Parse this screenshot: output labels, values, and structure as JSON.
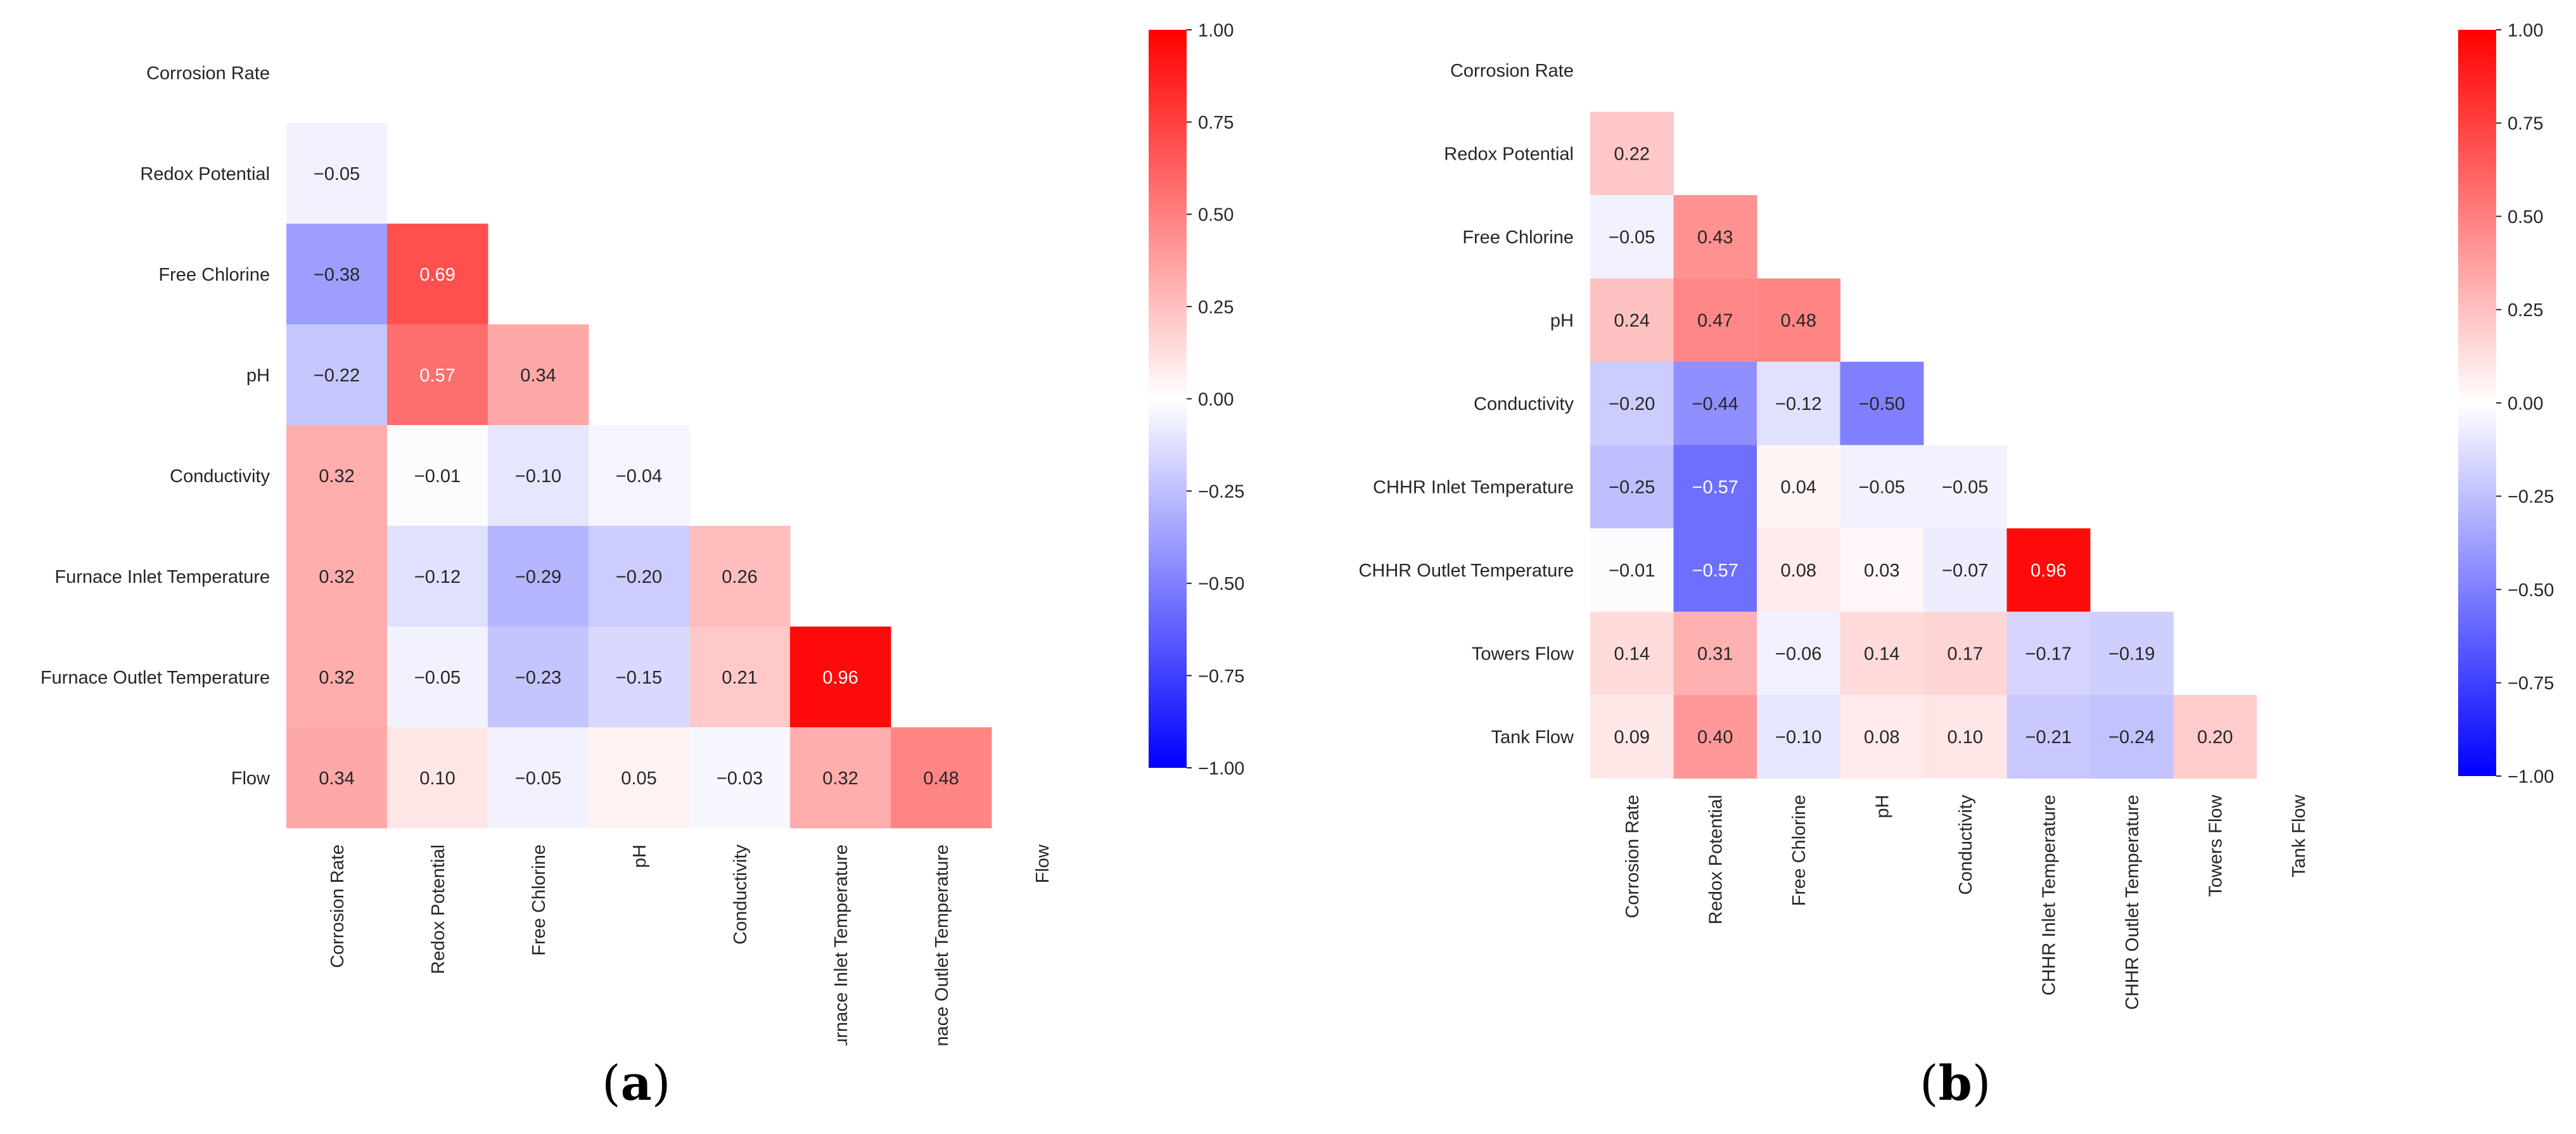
{
  "chart_data": [
    {
      "type": "heatmap",
      "panel": "a",
      "caption_open": "(",
      "caption_letter": "a",
      "caption_close": ")",
      "variables": [
        "Corrosion Rate",
        "Redox Potential",
        "Free Chlorine",
        "pH",
        "Conductivity",
        "Furnace Inlet Temperature",
        "Furnace Outlet Temperature",
        "Flow"
      ],
      "lower_triangle": [
        [],
        [
          -0.05
        ],
        [
          -0.38,
          0.69
        ],
        [
          -0.22,
          0.57,
          0.34
        ],
        [
          0.32,
          -0.01,
          -0.1,
          -0.04
        ],
        [
          0.32,
          -0.12,
          -0.29,
          -0.2,
          0.26
        ],
        [
          0.32,
          -0.05,
          -0.23,
          -0.15,
          0.21,
          0.96
        ],
        [
          0.34,
          0.1,
          -0.05,
          0.05,
          -0.03,
          0.32,
          0.48
        ]
      ],
      "colorbar": {
        "min": -1.0,
        "max": 1.0,
        "ticks": [
          "1.00",
          "0.75",
          "0.50",
          "0.25",
          "0.00",
          "−0.25",
          "−0.50",
          "−0.75",
          "−1.00"
        ]
      },
      "colormap": {
        "low": "#0000ff",
        "mid": "#ffffff",
        "high": "#ff0000"
      }
    },
    {
      "type": "heatmap",
      "panel": "b",
      "caption_open": "(",
      "caption_letter": "b",
      "caption_close": ")",
      "variables": [
        "Corrosion Rate",
        "Redox Potential",
        "Free Chlorine",
        "pH",
        "Conductivity",
        "CHHR Inlet Temperature",
        "CHHR Outlet Temperature",
        "Towers Flow",
        "Tank Flow"
      ],
      "lower_triangle": [
        [],
        [
          0.22
        ],
        [
          -0.05,
          0.43
        ],
        [
          0.24,
          0.47,
          0.48
        ],
        [
          -0.2,
          -0.44,
          -0.12,
          -0.5
        ],
        [
          -0.25,
          -0.57,
          0.04,
          -0.05,
          -0.05
        ],
        [
          -0.01,
          -0.57,
          0.08,
          0.03,
          -0.07,
          0.96
        ],
        [
          0.14,
          0.31,
          -0.06,
          0.14,
          0.17,
          -0.17,
          -0.19
        ],
        [
          0.09,
          0.4,
          -0.1,
          0.08,
          0.1,
          -0.21,
          -0.24,
          0.2
        ]
      ],
      "colorbar": {
        "min": -1.0,
        "max": 1.0,
        "ticks": [
          "1.00",
          "0.75",
          "0.50",
          "0.25",
          "0.00",
          "−0.25",
          "−0.50",
          "−0.75",
          "−1.00"
        ]
      },
      "colormap": {
        "low": "#0000ff",
        "mid": "#ffffff",
        "high": "#ff0000"
      }
    }
  ]
}
